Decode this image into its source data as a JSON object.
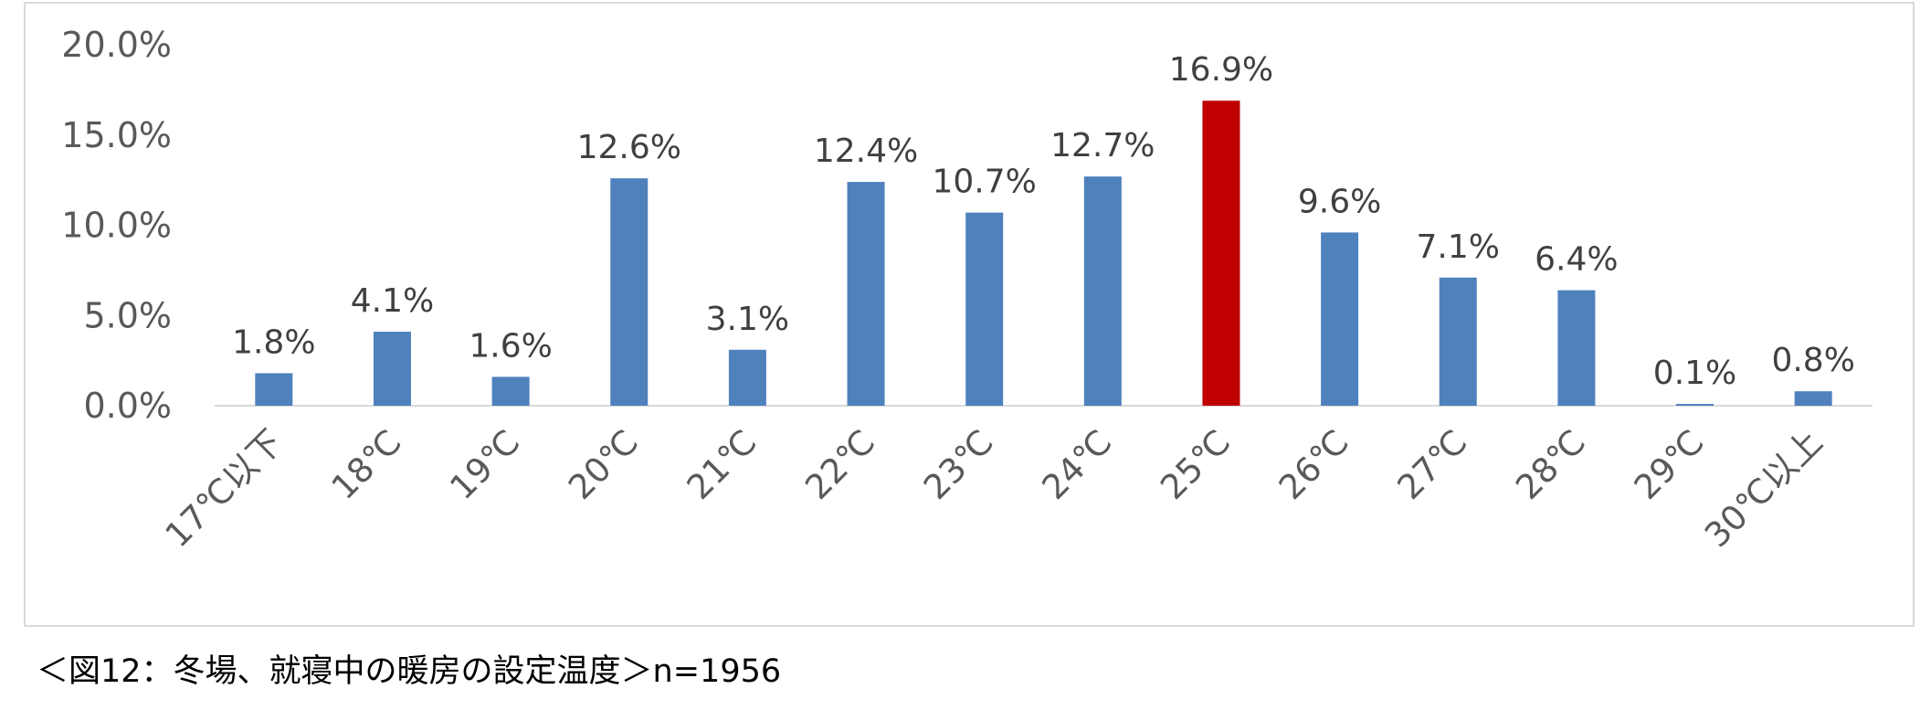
{
  "caption": "＜図12：冬場、就寝中の暖房の設定温度＞n=1956",
  "colors": {
    "bar": "#4f81bd",
    "highlight": "#c00000",
    "axis": "#d9d9d9",
    "text": "#595959"
  },
  "chart_data": {
    "type": "bar",
    "title": "",
    "xlabel": "",
    "ylabel": "",
    "categories": [
      "17℃以下",
      "18℃",
      "19℃",
      "20℃",
      "21℃",
      "22℃",
      "23℃",
      "24℃",
      "25℃",
      "26℃",
      "27℃",
      "28℃",
      "29℃",
      "30℃以上"
    ],
    "values": [
      1.8,
      4.1,
      1.6,
      12.6,
      3.1,
      12.4,
      10.7,
      12.7,
      16.9,
      9.6,
      7.1,
      6.4,
      0.1,
      0.8
    ],
    "data_labels": [
      "1.8%",
      "4.1%",
      "1.6%",
      "12.6%",
      "3.1%",
      "12.4%",
      "10.7%",
      "12.7%",
      "16.9%",
      "9.6%",
      "7.1%",
      "6.4%",
      "0.1%",
      "0.8%"
    ],
    "highlight_category": "25℃",
    "ylim": [
      0,
      20
    ],
    "yticks": [
      0,
      5,
      10,
      15,
      20
    ],
    "ytick_labels": [
      "0.0%",
      "5.0%",
      "10.0%",
      "15.0%",
      "20.0%"
    ],
    "grid": false,
    "legend": "none"
  }
}
